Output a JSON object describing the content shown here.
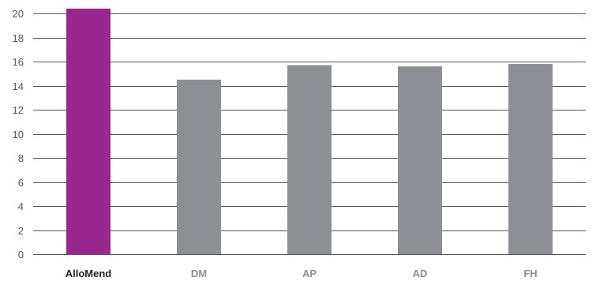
{
  "chart_data": {
    "type": "bar",
    "categories": [
      "AlloMend",
      "DM",
      "AP",
      "AD",
      "FH"
    ],
    "values": [
      20.4,
      14.5,
      15.7,
      15.6,
      15.8
    ],
    "yticks": [
      0,
      2,
      4,
      6,
      8,
      10,
      12,
      14,
      16,
      18,
      20
    ],
    "ylim": [
      0,
      20
    ],
    "grid": true,
    "legend": "none",
    "highlight_index": 0,
    "colors": {
      "highlight": "#98278f",
      "default": "#8b9096",
      "grid": "#555555",
      "highlight_label": "#222222",
      "default_label": "#8e8e8e",
      "tick_label": "#555555"
    }
  }
}
